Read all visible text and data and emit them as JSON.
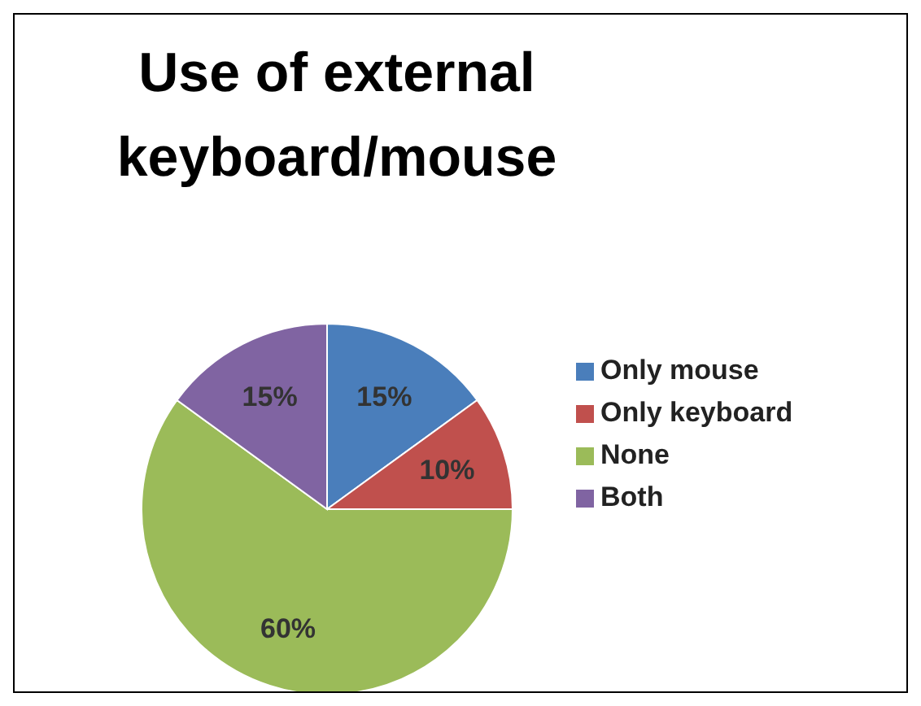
{
  "chart_data": {
    "type": "pie",
    "title": "Use of external keyboard/mouse",
    "categories": [
      "Only mouse",
      "Only keyboard",
      "None",
      "Both"
    ],
    "values": [
      15,
      10,
      60,
      15
    ],
    "colors": [
      "#4a7ebb",
      "#c0504d",
      "#9bbb59",
      "#8064a2"
    ],
    "value_labels": [
      "15%",
      "10%",
      "60%",
      "15%"
    ],
    "legend": "right"
  }
}
